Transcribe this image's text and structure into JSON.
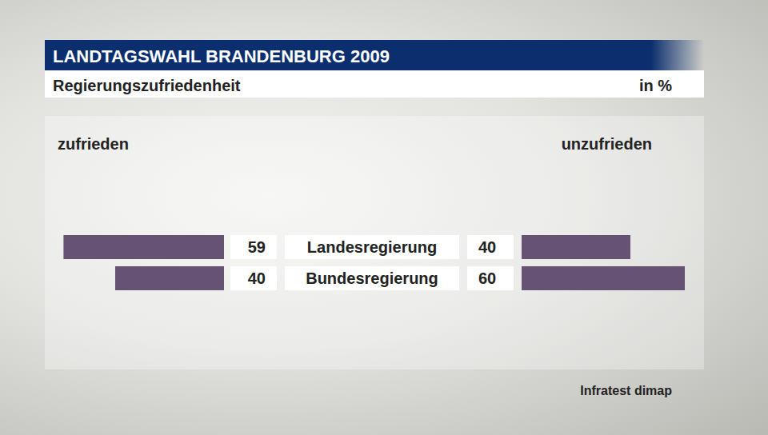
{
  "chart_data": {
    "type": "bar",
    "orientation": "horizontal",
    "title": "LANDTAGSWAHL BRANDENBURG 2009",
    "subtitle": "Regierungszufriedenheit",
    "annotations": [
      "in %",
      "Infratest dimap"
    ],
    "categories": [
      "Landesregierung",
      "Bundesregierung"
    ],
    "series": [
      {
        "name": "zufrieden",
        "color": "#665272",
        "values": [
          59,
          40
        ]
      },
      {
        "name": "unzufrieden",
        "color": "#665272",
        "values": [
          40,
          60
        ]
      }
    ],
    "data_labels": true,
    "tick_labels": false
  }
}
